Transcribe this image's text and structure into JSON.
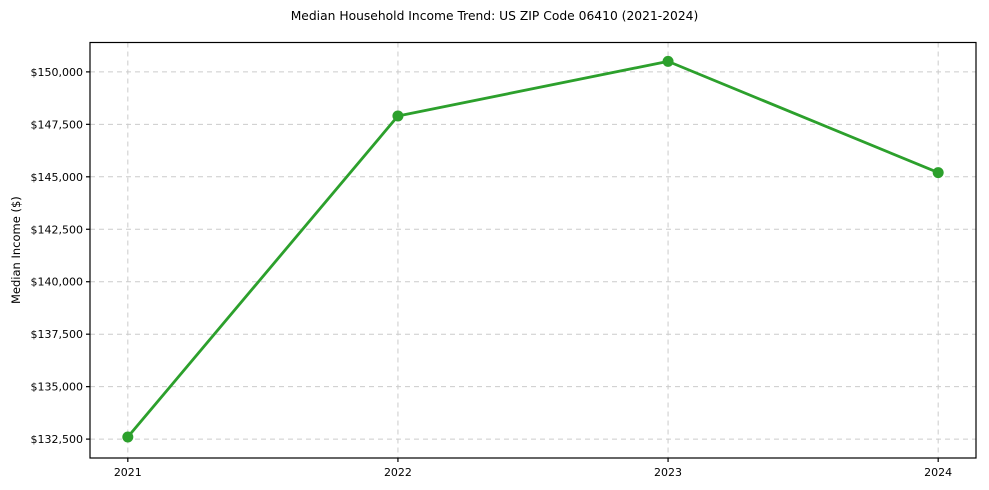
{
  "chart_data": {
    "type": "line",
    "title": "Median Household Income Trend: US ZIP Code 06410 (2021-2024)",
    "xlabel": "",
    "ylabel": "Median Income ($)",
    "x": [
      2021,
      2022,
      2023,
      2024
    ],
    "x_tick_labels": [
      "2021",
      "2022",
      "2023",
      "2024"
    ],
    "series": [
      {
        "name": "Median Household Income",
        "values": [
          132600,
          147900,
          150500,
          145200
        ]
      }
    ],
    "y_ticks": [
      {
        "value": 132500,
        "label": "$132,500"
      },
      {
        "value": 135000,
        "label": "$135,000"
      },
      {
        "value": 137500,
        "label": "$137,500"
      },
      {
        "value": 140000,
        "label": "$140,000"
      },
      {
        "value": 142500,
        "label": "$142,500"
      },
      {
        "value": 145000,
        "label": "$145,000"
      },
      {
        "value": 147500,
        "label": "$147,500"
      },
      {
        "value": 150000,
        "label": "$150,000"
      }
    ],
    "ylim": [
      131600,
      151400
    ],
    "xlim": [
      2020.86,
      2024.14
    ],
    "grid": true,
    "grid_style": "dashed",
    "legend": "none",
    "colors": {
      "line": "#2ca02c",
      "marker": "#2ca02c",
      "grid": "#cccccc",
      "axis": "#000000",
      "text": "#000000",
      "background": "#ffffff"
    }
  }
}
